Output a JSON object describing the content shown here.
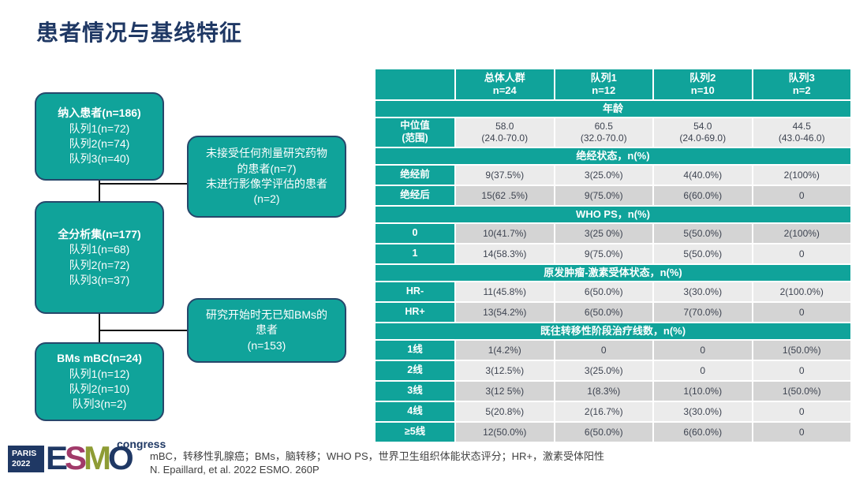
{
  "title": "患者情况与基线特征",
  "colors": {
    "teal": "#10A39A",
    "navy": "#1F3864",
    "box_border": "#27476B",
    "row_light": "#EBEBEB",
    "row_dark": "#D4D4D4",
    "logo_crimson": "#A13A6A",
    "logo_olive": "#8E9C35"
  },
  "flowchart": {
    "main_boxes": [
      {
        "title": "纳入患者(n=186)",
        "lines": [
          "队列1(n=72)",
          "队列2(n=74)",
          "队列3(n=40)"
        ]
      },
      {
        "title": "全分析集(n=177)",
        "lines": [
          "队列1(n=68)",
          "队列2(n=72)",
          "队列3(n=37)"
        ]
      },
      {
        "title": "BMs mBC(n=24)",
        "lines": [
          "队列1(n=12)",
          "队列2(n=10)",
          "队列3(n=2)"
        ]
      }
    ],
    "side_boxes": [
      {
        "lines": [
          "未接受任何剂量研究药物",
          "的患者(n=7)",
          "未进行影像学评估的患者",
          "(n=2)"
        ]
      },
      {
        "lines": [
          "研究开始时无已知BMs的",
          "患者",
          "(n=153)"
        ]
      }
    ]
  },
  "table": {
    "columns": [
      {
        "label": "",
        "sub": ""
      },
      {
        "label": "总体人群",
        "sub": "n=24"
      },
      {
        "label": "队列1",
        "sub": "n=12"
      },
      {
        "label": "队列2",
        "sub": "n=10"
      },
      {
        "label": "队列3",
        "sub": "n=2"
      }
    ],
    "sections": [
      {
        "header": "年龄",
        "rows": [
          {
            "label": [
              "中位值",
              "(范围)"
            ],
            "shade": "light",
            "tall": true,
            "cells": [
              [
                "58.0",
                "(24.0-70.0)"
              ],
              [
                "60.5",
                "(32.0-70.0)"
              ],
              [
                "54.0",
                "(24.0-69.0)"
              ],
              [
                "44.5",
                "(43.0-46.0)"
              ]
            ]
          }
        ]
      },
      {
        "header": "绝经状态，n(%)",
        "rows": [
          {
            "label": [
              "绝经前"
            ],
            "shade": "light",
            "cells": [
              [
                "9(37.5%)"
              ],
              [
                "3(25.0%)"
              ],
              [
                "4(40.0%)"
              ],
              [
                "2(100%)"
              ]
            ]
          },
          {
            "label": [
              "绝经后"
            ],
            "shade": "dark",
            "cells": [
              [
                "15(62 .5%)"
              ],
              [
                "9(75.0%)"
              ],
              [
                "6(60.0%)"
              ],
              [
                "0"
              ]
            ]
          }
        ]
      },
      {
        "header": "WHO PS，n(%)",
        "rows": [
          {
            "label": [
              "0"
            ],
            "shade": "dark",
            "cells": [
              [
                "10(41.7%)"
              ],
              [
                "3(25 0%)"
              ],
              [
                "5(50.0%)"
              ],
              [
                "2(100%)"
              ]
            ]
          },
          {
            "label": [
              "1"
            ],
            "shade": "light",
            "cells": [
              [
                "14(58.3%)"
              ],
              [
                "9(75.0%)"
              ],
              [
                "5(50.0%)"
              ],
              [
                "0"
              ]
            ]
          }
        ]
      },
      {
        "header": "原发肿瘤-激素受体状态，n(%)",
        "rows": [
          {
            "label": [
              "HR-"
            ],
            "shade": "light",
            "cells": [
              [
                "11(45.8%)"
              ],
              [
                "6(50.0%)"
              ],
              [
                "3(30.0%)"
              ],
              [
                "2(100.0%)"
              ]
            ]
          },
          {
            "label": [
              "HR+"
            ],
            "shade": "dark",
            "cells": [
              [
                "13(54.2%)"
              ],
              [
                "6(50.0%)"
              ],
              [
                "7(70.0%)"
              ],
              [
                "0"
              ]
            ]
          }
        ]
      },
      {
        "header": "既往转移性阶段治疗线数，n(%)",
        "rows": [
          {
            "label": [
              "1线"
            ],
            "shade": "dark",
            "cells": [
              [
                "1(4.2%)"
              ],
              [
                "0"
              ],
              [
                "0"
              ],
              [
                "1(50.0%)"
              ]
            ]
          },
          {
            "label": [
              "2线"
            ],
            "shade": "light",
            "cells": [
              [
                "3(12.5%)"
              ],
              [
                "3(25.0%)"
              ],
              [
                "0"
              ],
              [
                "0"
              ]
            ]
          },
          {
            "label": [
              "3线"
            ],
            "shade": "dark",
            "cells": [
              [
                "3(12 5%)"
              ],
              [
                "1(8.3%)"
              ],
              [
                "1(10.0%)"
              ],
              [
                "1(50.0%)"
              ]
            ]
          },
          {
            "label": [
              "4线"
            ],
            "shade": "light",
            "cells": [
              [
                "5(20.8%)"
              ],
              [
                "2(16.7%)"
              ],
              [
                "3(30.0%)"
              ],
              [
                "0"
              ]
            ]
          },
          {
            "label": [
              "≥5线"
            ],
            "shade": "dark",
            "cells": [
              [
                "12(50.0%)"
              ],
              [
                "6(50.0%)"
              ],
              [
                "6(60.0%)"
              ],
              [
                "0"
              ]
            ]
          }
        ]
      }
    ]
  },
  "footer": {
    "footnote1": "mBC，转移性乳腺癌；BMs，脑转移；WHO PS，世界卫生组织体能状态评分；HR+，激素受体阳性",
    "footnote2": "N. Epaillard, et al. 2022 ESMO. 260P",
    "logo": {
      "paris": "PARIS",
      "year": "2022",
      "esmo_letters": [
        "E",
        "S",
        "M",
        "O"
      ],
      "esmo_colors": [
        "#1F3864",
        "#A13A6A",
        "#8E9C35",
        "#1F3864"
      ],
      "congress": "congress"
    }
  }
}
